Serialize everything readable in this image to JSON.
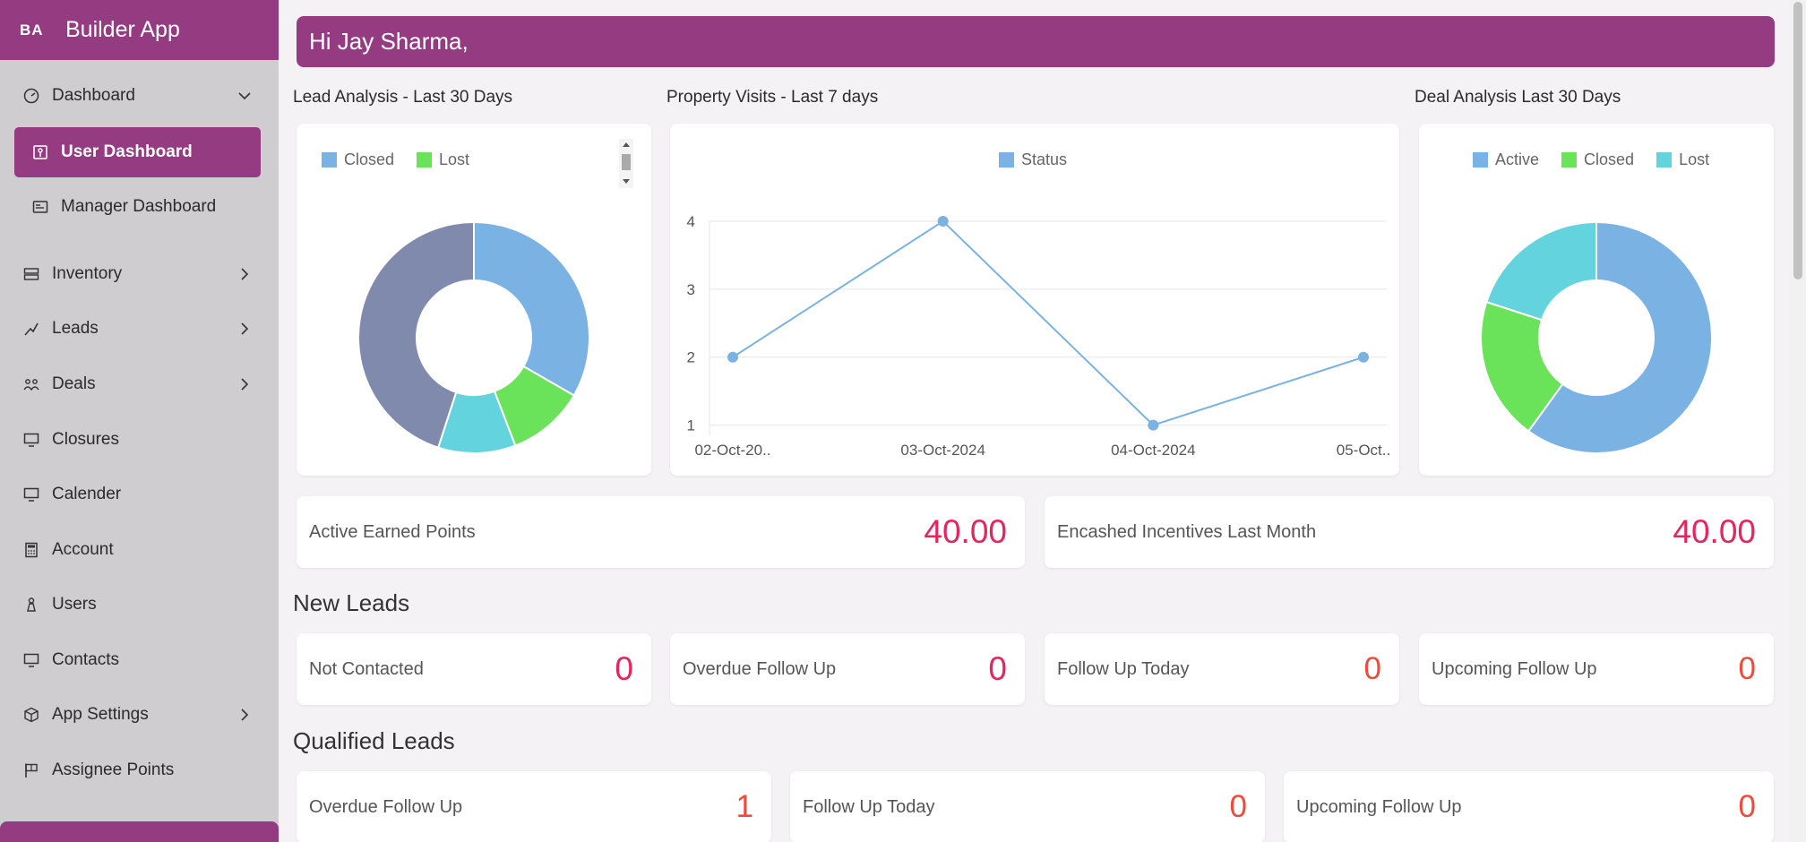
{
  "sidebar": {
    "brand_badge": "BA",
    "brand_title": "Builder App",
    "items": [
      {
        "label": "Dashboard"
      },
      {
        "label": "User Dashboard"
      },
      {
        "label": "Manager Dashboard"
      },
      {
        "label": "Inventory"
      },
      {
        "label": "Leads"
      },
      {
        "label": "Deals"
      },
      {
        "label": "Closures"
      },
      {
        "label": "Calender"
      },
      {
        "label": "Account"
      },
      {
        "label": "Users"
      },
      {
        "label": "Contacts"
      },
      {
        "label": "App Settings"
      },
      {
        "label": "Assignee Points"
      }
    ]
  },
  "greeting": "Hi Jay Sharma,",
  "charts": {
    "lead_title": "Lead Analysis - Last 30 Days",
    "visits_title": "Property Visits - Last 7 days",
    "deal_title": "Deal Analysis Last 30 Days"
  },
  "chart_data": [
    {
      "type": "pie",
      "title": "Lead Analysis - Last 30 Days",
      "legend_visible": [
        "Closed",
        "Lost"
      ],
      "series": [
        {
          "name": "Closed",
          "value": 4,
          "color": "#7ab3e3"
        },
        {
          "name": "Lost",
          "value": 1.3,
          "color": "#6ae35a"
        },
        {
          "name": "",
          "value": 1.3,
          "color": "#63d3dd"
        },
        {
          "name": "",
          "value": 5.4,
          "color": "#7f8aad"
        }
      ]
    },
    {
      "type": "line",
      "title": "Property Visits - Last 7 days",
      "categories": [
        "02-Oct-20..",
        "03-Oct-2024",
        "04-Oct-2024",
        "05-Oct.."
      ],
      "series": [
        {
          "name": "Status",
          "values": [
            2,
            4,
            1,
            2
          ],
          "color": "#7ab3e3"
        }
      ],
      "yticks": [
        "1",
        "2",
        "3",
        "4"
      ],
      "ylim": [
        0.85,
        4
      ],
      "grid": true,
      "legend": "top-center"
    },
    {
      "type": "pie",
      "title": "Deal Analysis Last 30 Days",
      "series": [
        {
          "name": "Active",
          "value": 6,
          "color": "#7ab3e3"
        },
        {
          "name": "Closed",
          "value": 2,
          "color": "#6ae35a"
        },
        {
          "name": "Lost",
          "value": 2,
          "color": "#63d3dd"
        }
      ]
    }
  ],
  "points": {
    "active_label": "Active Earned Points",
    "active_value": "40.00",
    "encashed_label": "Encashed Incentives Last Month",
    "encashed_value": "40.00"
  },
  "new_leads": {
    "heading": "New Leads",
    "cards": [
      {
        "label": "Not Contacted",
        "value": "0"
      },
      {
        "label": "Overdue Follow Up",
        "value": "0"
      },
      {
        "label": "Follow Up Today",
        "value": "0"
      },
      {
        "label": "Upcoming Follow Up",
        "value": "0"
      }
    ]
  },
  "qualified_leads": {
    "heading": "Qualified Leads",
    "cards": [
      {
        "label": "Overdue Follow Up",
        "value": "1"
      },
      {
        "label": "Follow Up Today",
        "value": "0"
      },
      {
        "label": "Upcoming Follow Up",
        "value": "0"
      }
    ]
  }
}
